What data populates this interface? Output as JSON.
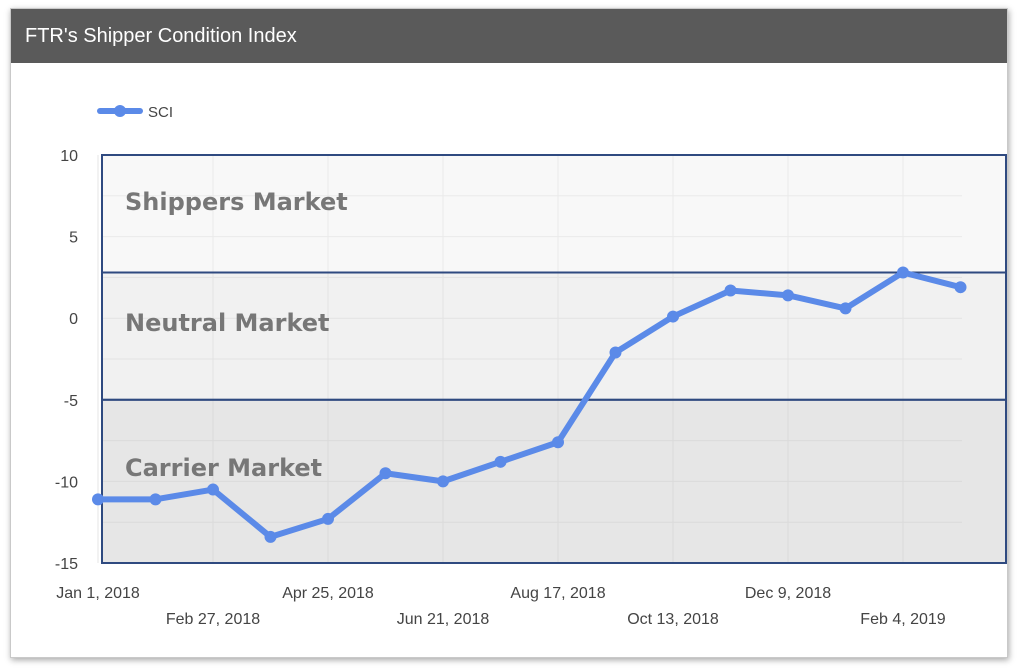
{
  "header": {
    "title": "FTR's Shipper Condition Index"
  },
  "legend": {
    "label": "SCI"
  },
  "colors": {
    "series": "#5b8ae8",
    "header_bg": "#5a5a5a",
    "band_border": "#2f4a80"
  },
  "bands": [
    {
      "label": "Shippers Market",
      "range": [
        2.8,
        10
      ]
    },
    {
      "label": "Neutral Market",
      "range": [
        -5,
        2.8
      ]
    },
    {
      "label": "Carrier Market",
      "range": [
        -15,
        -5
      ]
    }
  ],
  "chart_data": {
    "type": "line",
    "title": "FTR's Shipper Condition Index",
    "xlabel": "",
    "ylabel": "",
    "ylim": [
      -15,
      10
    ],
    "yticks": [
      10,
      5,
      0,
      -5,
      -10,
      -15
    ],
    "grid": true,
    "legend_position": "top-left",
    "xtick_labels": [
      "Jan 1, 2018",
      "Feb 27, 2018",
      "Apr 25, 2018",
      "Jun 21, 2018",
      "Aug 17, 2018",
      "Oct 13, 2018",
      "Dec 9, 2018",
      "Feb 4, 2019"
    ],
    "series": [
      {
        "name": "SCI",
        "x": [
          "2018-01",
          "2018-02",
          "2018-03",
          "2018-04",
          "2018-05",
          "2018-06",
          "2018-07",
          "2018-08",
          "2018-09",
          "2018-10",
          "2018-11",
          "2018-12",
          "2019-01",
          "2019-02",
          "2019-03",
          "2019-04"
        ],
        "values": [
          -11.1,
          -11.1,
          -10.5,
          -13.4,
          -12.3,
          -9.5,
          -10.0,
          -8.8,
          -7.6,
          -2.1,
          0.1,
          1.7,
          1.4,
          0.6,
          2.8,
          1.9
        ]
      }
    ]
  }
}
